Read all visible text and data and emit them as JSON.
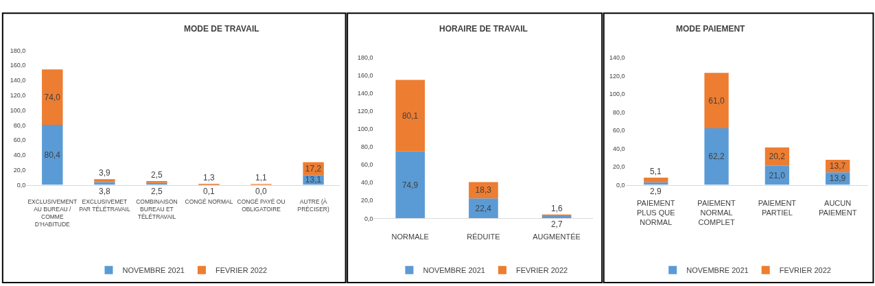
{
  "chart_data": [
    {
      "type": "bar",
      "stacked": true,
      "title": "MODE DE TRAVAIL",
      "legend": "bottom",
      "categories": [
        "EXCLUSIVEMENT AU BUREAU / COMME D’HABITUDE",
        "EXCLUSIVEMET PAR TÉLÉTRAVAIL",
        "COMBINAISON BUREAU ET TÉLÉTRAVAIL",
        "CONGÉ NORMAL",
        "CONGÉ PAYÉ OU OBLIGATOIRE",
        "AUTRE (À PRÉCISER)"
      ],
      "series": [
        {
          "name": "NOVEMBRE 2021",
          "color": "#5b9bd5",
          "values": [
            80.4,
            3.8,
            2.5,
            0.1,
            0.0,
            13.1
          ],
          "value_labels": [
            "80,4",
            "3,8",
            "2,5",
            "0,1",
            "0,0",
            "13,1"
          ]
        },
        {
          "name": "FEVRIER 2022",
          "color": "#ed7d31",
          "values": [
            74.0,
            3.9,
            2.5,
            1.3,
            1.1,
            17.2
          ],
          "value_labels": [
            "74,0",
            "3,9",
            "2,5",
            "1,3",
            "1,1",
            "17,2"
          ]
        }
      ],
      "ylim": [
        0,
        180
      ],
      "yticks": [
        {
          "value": 0,
          "label": "0,0"
        },
        {
          "value": 20,
          "label": "20,0"
        },
        {
          "value": 40,
          "label": "40,0"
        },
        {
          "value": 60,
          "label": "60,0"
        },
        {
          "value": 80,
          "label": "80,0"
        },
        {
          "value": 100,
          "label": "100,0"
        },
        {
          "value": 120,
          "label": "120,0"
        },
        {
          "value": 140,
          "label": "140,0"
        },
        {
          "value": 160,
          "label": "160,0"
        },
        {
          "value": 180,
          "label": "180,0"
        }
      ]
    },
    {
      "type": "bar",
      "stacked": true,
      "title": "HORAIRE DE TRAVAIL",
      "legend": "bottom",
      "categories": [
        "NORMALE",
        "RÉDUITE",
        "AUGMENTÉE"
      ],
      "series": [
        {
          "name": "NOVEMBRE 2021",
          "color": "#5b9bd5",
          "values": [
            74.9,
            22.4,
            2.7
          ],
          "value_labels": [
            "74,9",
            "22,4",
            "2,7"
          ]
        },
        {
          "name": "FEVRIER 2022",
          "color": "#ed7d31",
          "values": [
            80.1,
            18.3,
            1.6
          ],
          "value_labels": [
            "80,1",
            "18,3",
            "1,6"
          ]
        }
      ],
      "ylim": [
        0,
        180
      ],
      "yticks": [
        {
          "value": 0,
          "label": "0,0"
        },
        {
          "value": 20,
          "label": "20,0"
        },
        {
          "value": 40,
          "label": "40,0"
        },
        {
          "value": 60,
          "label": "60,0"
        },
        {
          "value": 80,
          "label": "80,0"
        },
        {
          "value": 100,
          "label": "100,0"
        },
        {
          "value": 120,
          "label": "120,0"
        },
        {
          "value": 140,
          "label": "140,0"
        },
        {
          "value": 160,
          "label": "160,0"
        },
        {
          "value": 180,
          "label": "180,0"
        }
      ]
    },
    {
      "type": "bar",
      "stacked": true,
      "title": "MODE PAIEMENT",
      "legend": "bottom",
      "categories": [
        "PAIEMENT PLUS QUE NORMAL",
        "PAIEMENT NORMAL COMPLET",
        "PAIEMENT PARTIEL",
        "AUCUN PAIEMENT"
      ],
      "series": [
        {
          "name": "NOVEMBRE 2021",
          "color": "#5b9bd5",
          "values": [
            2.9,
            62.2,
            21.0,
            13.9
          ],
          "value_labels": [
            "2,9",
            "62,2",
            "21,0",
            "13,9"
          ]
        },
        {
          "name": "FEVRIER 2022",
          "color": "#ed7d31",
          "values": [
            5.1,
            61.0,
            20.2,
            13.7
          ],
          "value_labels": [
            "5,1",
            "61,0",
            "20,2",
            "13,7"
          ]
        }
      ],
      "ylim": [
        0,
        140
      ],
      "yticks": [
        {
          "value": 0,
          "label": "0,0"
        },
        {
          "value": 20,
          "label": "20,0"
        },
        {
          "value": 40,
          "label": "40,0"
        },
        {
          "value": 60,
          "label": "60,0"
        },
        {
          "value": 80,
          "label": "80,0"
        },
        {
          "value": 100,
          "label": "100,0"
        },
        {
          "value": 120,
          "label": "120,0"
        },
        {
          "value": 140,
          "label": "140,0"
        }
      ]
    }
  ]
}
